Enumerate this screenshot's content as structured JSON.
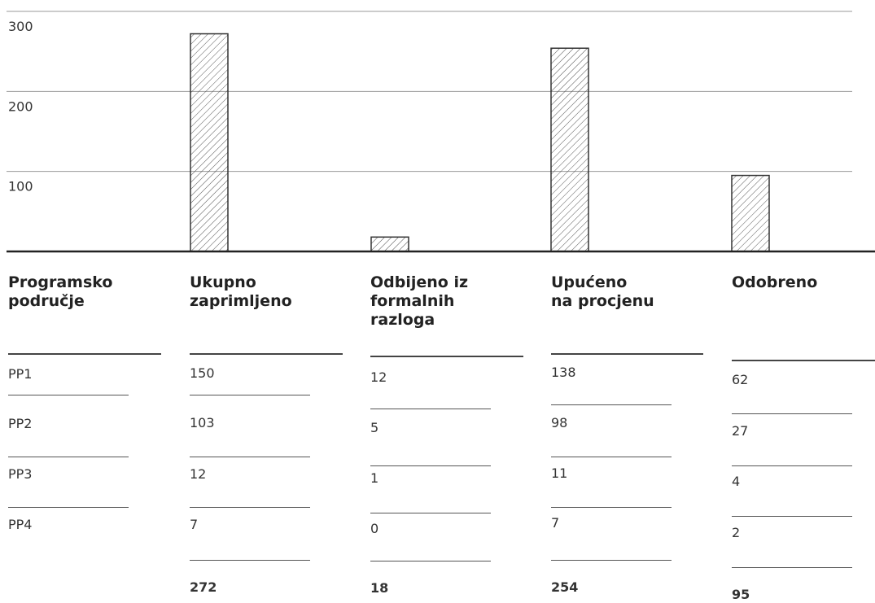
{
  "chart_data": {
    "type": "bar",
    "categories": [
      "Ukupno zaprimljeno",
      "Odbijeno iz formalnih razloga",
      "Upućeno na procjenu",
      "Odobreno"
    ],
    "values": [
      272,
      18,
      254,
      95
    ],
    "ylim": [
      0,
      300
    ],
    "yticks": [
      "100",
      "200",
      "300"
    ],
    "grid": true,
    "pattern": "diagonal-hatch"
  },
  "table": {
    "headers": [
      "Programsko\npodručje",
      "Ukupno\nzaprimljeno",
      "Odbijeno iz\nformalnih\nrazloga",
      "Upućeno\nna procjenu",
      "Odobreno"
    ],
    "rows": [
      [
        "PP1",
        "150",
        "12",
        "138",
        "62"
      ],
      [
        "PP2",
        "103",
        "5",
        "98",
        "27"
      ],
      [
        "PP3",
        "12",
        "1",
        "11",
        "4"
      ],
      [
        "PP4",
        "7",
        "0",
        "7",
        "2"
      ]
    ],
    "totals": [
      "",
      "272",
      "18",
      "254",
      "95"
    ]
  },
  "colors": {
    "axis": "#222222",
    "grid": "#999999",
    "bar_stroke": "#333333",
    "hatch": "#555555"
  }
}
